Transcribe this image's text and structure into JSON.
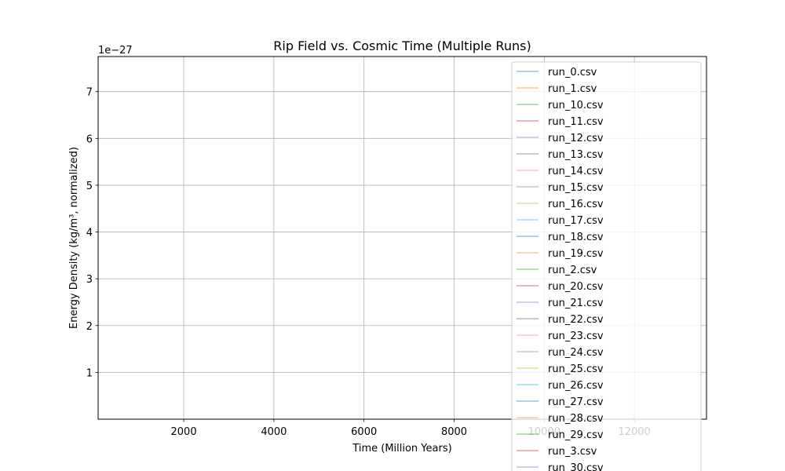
{
  "chart_data": {
    "type": "line",
    "title": "Rip Field vs. Cosmic Time (Multiple Runs)",
    "xlabel": "Time (Million Years)",
    "ylabel": "Energy Density (kg/m³, normalized)",
    "y_offset_label": "1e−27",
    "xlim": [
      100,
      13600
    ],
    "ylim": [
      0,
      7.75
    ],
    "x_ticks": [
      2000,
      4000,
      6000,
      8000,
      10000,
      12000
    ],
    "x_tick_labels": [
      "2000",
      "4000",
      "6000",
      "8000",
      "10000",
      "12000"
    ],
    "y_ticks": [
      1,
      2,
      3,
      4,
      5,
      6,
      7
    ],
    "y_tick_labels": [
      "1",
      "2",
      "3",
      "4",
      "5",
      "6",
      "7"
    ],
    "grid": true,
    "legend_position": "upper-right",
    "series": [
      {
        "name": "run_0.csv",
        "color": "#1f77b4",
        "values": []
      },
      {
        "name": "run_1.csv",
        "color": "#ff7f0e",
        "values": []
      },
      {
        "name": "run_10.csv",
        "color": "#2ca02c",
        "values": []
      },
      {
        "name": "run_11.csv",
        "color": "#d62728",
        "values": []
      },
      {
        "name": "run_12.csv",
        "color": "#9467bd",
        "values": []
      },
      {
        "name": "run_13.csv",
        "color": "#8c564b",
        "values": []
      },
      {
        "name": "run_14.csv",
        "color": "#e377c2",
        "values": []
      },
      {
        "name": "run_15.csv",
        "color": "#7f7f7f",
        "values": []
      },
      {
        "name": "run_16.csv",
        "color": "#bcbd22",
        "values": []
      },
      {
        "name": "run_17.csv",
        "color": "#17becf",
        "values": []
      },
      {
        "name": "run_18.csv",
        "color": "#1f77b4",
        "values": []
      },
      {
        "name": "run_19.csv",
        "color": "#ff7f0e",
        "values": []
      },
      {
        "name": "run_2.csv",
        "color": "#2ca02c",
        "values": []
      },
      {
        "name": "run_20.csv",
        "color": "#d62728",
        "values": []
      },
      {
        "name": "run_21.csv",
        "color": "#9467bd",
        "values": []
      },
      {
        "name": "run_22.csv",
        "color": "#8c564b",
        "values": []
      },
      {
        "name": "run_23.csv",
        "color": "#e377c2",
        "values": []
      },
      {
        "name": "run_24.csv",
        "color": "#7f7f7f",
        "values": []
      },
      {
        "name": "run_25.csv",
        "color": "#bcbd22",
        "values": []
      },
      {
        "name": "run_26.csv",
        "color": "#17becf",
        "values": []
      },
      {
        "name": "run_27.csv",
        "color": "#1f77b4",
        "values": []
      },
      {
        "name": "run_28.csv",
        "color": "#ff7f0e",
        "values": []
      },
      {
        "name": "run_29.csv",
        "color": "#2ca02c",
        "values": []
      },
      {
        "name": "run_3.csv",
        "color": "#d62728",
        "values": []
      },
      {
        "name": "run_30.csv",
        "color": "#9467bd",
        "values": []
      }
    ]
  }
}
